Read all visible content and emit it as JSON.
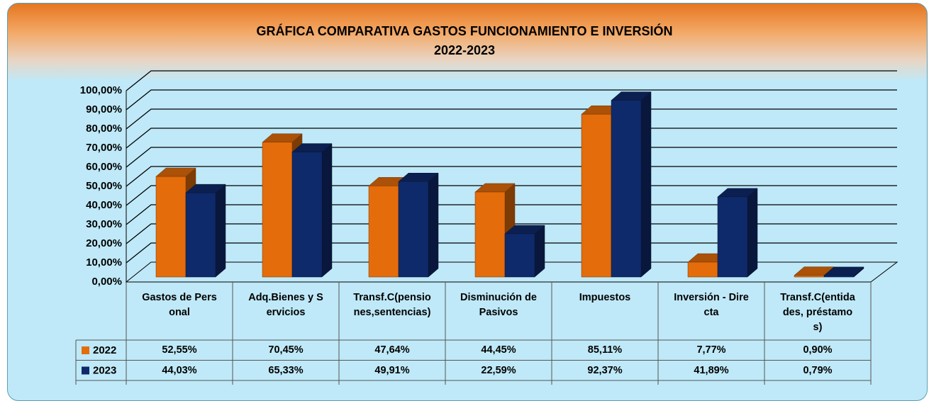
{
  "chart_data": {
    "type": "bar3d",
    "title": "GRÁFICA COMPARATIVA GASTOS FUNCIONAMIENTO E INVERSIÓN",
    "subtitle": "2022-2023",
    "categories": [
      "Gastos de Personal",
      "Adq.Bienes y Servicios",
      "Transf.C(pensiones,sentencias)",
      "Disminución de Pasivos",
      "Impuestos",
      "Inversión - Directa",
      "Transf.C(entidades, préstamos)"
    ],
    "series": [
      {
        "name": "2022",
        "color": "#e46c0a",
        "values": [
          52.55,
          70.45,
          47.64,
          44.45,
          85.11,
          7.77,
          0.9
        ],
        "value_labels": [
          "52,55%",
          "70,45%",
          "47,64%",
          "44,45%",
          "85,11%",
          "7,77%",
          "0,90%"
        ]
      },
      {
        "name": "2023",
        "color": "#0f2a6b",
        "values": [
          44.03,
          65.33,
          49.91,
          22.59,
          92.37,
          41.89,
          0.79
        ],
        "value_labels": [
          "44,03%",
          "65,33%",
          "49,91%",
          "22,59%",
          "92,37%",
          "41,89%",
          "0,79%"
        ]
      }
    ],
    "ylim": [
      0,
      100
    ],
    "yticks": [
      {
        "value": 0,
        "label": "0,00%"
      },
      {
        "value": 10,
        "label": "10,00%"
      },
      {
        "value": 20,
        "label": "20,00%"
      },
      {
        "value": 30,
        "label": "30,00%"
      },
      {
        "value": 40,
        "label": "40,00%"
      },
      {
        "value": 50,
        "label": "50,00%"
      },
      {
        "value": 60,
        "label": "60,00%"
      },
      {
        "value": 70,
        "label": "70,00%"
      },
      {
        "value": 80,
        "label": "80,00%"
      },
      {
        "value": 90,
        "label": "90,00%"
      },
      {
        "value": 100,
        "label": "100,00%"
      }
    ],
    "grid": true
  }
}
